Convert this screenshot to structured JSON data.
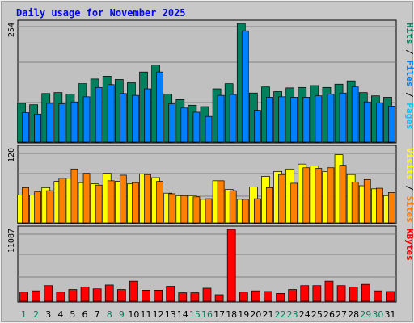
{
  "chart_data": [
    {
      "type": "bar",
      "title": "Daily usage for November 2025",
      "categories": [
        "1",
        "2",
        "3",
        "4",
        "5",
        "6",
        "7",
        "8",
        "9",
        "10",
        "11",
        "12",
        "13",
        "14",
        "15",
        "16",
        "17",
        "18",
        "19",
        "20",
        "21",
        "22",
        "23",
        "24",
        "25",
        "26",
        "27",
        "28",
        "29",
        "30",
        "31"
      ],
      "ymax_label": "254",
      "ylim": [
        0,
        254
      ],
      "legend_labels": [
        "Pages",
        "Files",
        "Hits"
      ],
      "series": [
        {
          "name": "Hits",
          "values": [
            83,
            80,
            104,
            106,
            103,
            125,
            135,
            141,
            134,
            127,
            150,
            165,
            103,
            91,
            79,
            76,
            114,
            125,
            254,
            105,
            118,
            108,
            116,
            117,
            121,
            117,
            124,
            131,
            106,
            99,
            96
          ]
        },
        {
          "name": "Files",
          "values": [
            63,
            60,
            83,
            82,
            86,
            97,
            117,
            123,
            104,
            100,
            114,
            150,
            82,
            73,
            64,
            55,
            100,
            102,
            238,
            68,
            96,
            97,
            96,
            96,
            99,
            103,
            105,
            118,
            86,
            84,
            77
          ]
        },
        {
          "name": "Pages",
          "values": [
            0,
            0,
            0,
            0,
            0,
            0,
            0,
            0,
            0,
            0,
            0,
            0,
            0,
            0,
            0,
            0,
            0,
            0,
            0,
            0,
            0,
            0,
            0,
            0,
            0,
            0,
            0,
            0,
            0,
            0,
            0
          ]
        }
      ],
      "colors": {
        "Hits": "#00805c",
        "Files": "#0080ff",
        "Pages": "#00c8f8"
      }
    },
    {
      "type": "bar",
      "categories": [
        "1",
        "2",
        "3",
        "4",
        "5",
        "6",
        "7",
        "8",
        "9",
        "10",
        "11",
        "12",
        "13",
        "14",
        "15",
        "16",
        "17",
        "18",
        "19",
        "20",
        "21",
        "22",
        "23",
        "24",
        "25",
        "26",
        "27",
        "28",
        "29",
        "30",
        "31"
      ],
      "ymax_label": "120",
      "ylim": [
        0,
        120
      ],
      "legend_labels": [
        "Sites",
        "Visits"
      ],
      "series": [
        {
          "name": "Visits",
          "values": [
            45,
            45,
            57,
            67,
            72,
            65,
            63,
            80,
            67,
            63,
            79,
            73,
            48,
            44,
            44,
            38,
            68,
            54,
            38,
            58,
            75,
            83,
            87,
            95,
            92,
            83,
            110,
            78,
            60,
            55,
            44
          ]
        },
        {
          "name": "Sites",
          "values": [
            57,
            50,
            52,
            72,
            87,
            80,
            61,
            68,
            77,
            65,
            78,
            67,
            47,
            44,
            42,
            39,
            68,
            52,
            38,
            39,
            57,
            78,
            64,
            89,
            88,
            89,
            93,
            66,
            70,
            56,
            49
          ]
        }
      ],
      "colors": {
        "Visits": "#ffff00",
        "Sites": "#ff8000"
      }
    },
    {
      "type": "bar",
      "categories": [
        "1",
        "2",
        "3",
        "4",
        "5",
        "6",
        "7",
        "8",
        "9",
        "10",
        "11",
        "12",
        "13",
        "14",
        "15",
        "16",
        "17",
        "18",
        "19",
        "20",
        "21",
        "22",
        "23",
        "24",
        "25",
        "26",
        "27",
        "28",
        "29",
        "30",
        "31"
      ],
      "ymax_label": "11087",
      "ylim": [
        0,
        11087
      ],
      "legend_labels": [
        "KBytes"
      ],
      "series": [
        {
          "name": "KBytes",
          "values": [
            1400,
            1600,
            2400,
            1400,
            1800,
            2200,
            1900,
            2500,
            1800,
            3100,
            1700,
            1700,
            2300,
            1300,
            1300,
            2000,
            1000,
            11087,
            1400,
            1600,
            1500,
            1200,
            1800,
            2400,
            2400,
            3100,
            2400,
            2200,
            2600,
            1600,
            1500
          ]
        }
      ],
      "colors": {
        "KBytes": "#ff0000"
      }
    }
  ],
  "x_labels_weekend": [
    "1",
    "2",
    "8",
    "9",
    "15",
    "16",
    "22",
    "23",
    "29",
    "30"
  ],
  "colors": {
    "background": "#c8c8c8",
    "plot_background": "#c0c0c0",
    "title": "#0000ff",
    "weekday_label": "#000000",
    "weekend_label": "#00805c",
    "gridline": "#808080"
  }
}
